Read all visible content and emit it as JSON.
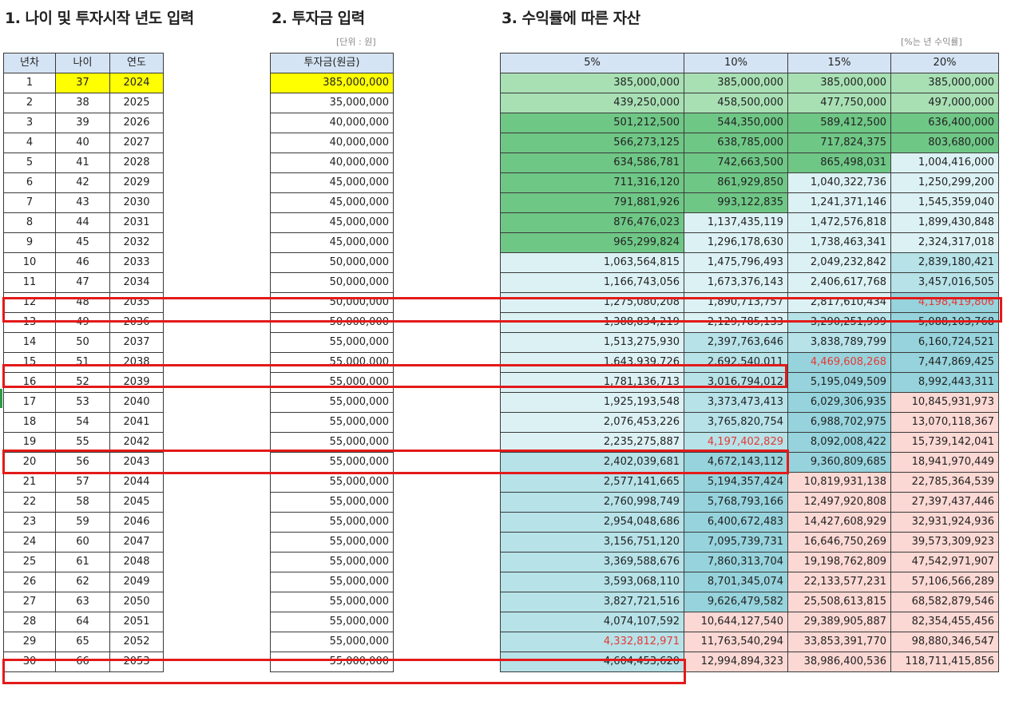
{
  "sections": {
    "s1_title": "1. 나이 및 투자시작 년도 입력",
    "s2_title": "2. 투자금 입력",
    "s3_title": "3. 수익률에 따른 자산",
    "s2_unit": "[단위 : 원]",
    "s3_unit": "[%는 년 수익률]"
  },
  "table1": {
    "headers": [
      "년차",
      "나이",
      "연도"
    ],
    "rows": [
      [
        1,
        37,
        2024
      ],
      [
        2,
        38,
        2025
      ],
      [
        3,
        39,
        2026
      ],
      [
        4,
        40,
        2027
      ],
      [
        5,
        41,
        2028
      ],
      [
        6,
        42,
        2029
      ],
      [
        7,
        43,
        2030
      ],
      [
        8,
        44,
        2031
      ],
      [
        9,
        45,
        2032
      ],
      [
        10,
        46,
        2033
      ],
      [
        11,
        47,
        2034
      ],
      [
        12,
        48,
        2035
      ],
      [
        13,
        49,
        2036
      ],
      [
        14,
        50,
        2037
      ],
      [
        15,
        51,
        2038
      ],
      [
        16,
        52,
        2039
      ],
      [
        17,
        53,
        2040
      ],
      [
        18,
        54,
        2041
      ],
      [
        19,
        55,
        2042
      ],
      [
        20,
        56,
        2043
      ],
      [
        21,
        57,
        2044
      ],
      [
        22,
        58,
        2045
      ],
      [
        23,
        59,
        2046
      ],
      [
        24,
        60,
        2047
      ],
      [
        25,
        61,
        2048
      ],
      [
        26,
        62,
        2049
      ],
      [
        27,
        63,
        2050
      ],
      [
        28,
        64,
        2051
      ],
      [
        29,
        65,
        2052
      ],
      [
        30,
        66,
        2053
      ]
    ]
  },
  "table2": {
    "header": "투자금(원금)",
    "rows": [
      "385,000,000",
      "35,000,000",
      "40,000,000",
      "40,000,000",
      "40,000,000",
      "45,000,000",
      "45,000,000",
      "45,000,000",
      "45,000,000",
      "50,000,000",
      "50,000,000",
      "50,000,000",
      "50,000,000",
      "55,000,000",
      "55,000,000",
      "55,000,000",
      "55,000,000",
      "55,000,000",
      "55,000,000",
      "55,000,000",
      "55,000,000",
      "55,000,000",
      "55,000,000",
      "55,000,000",
      "55,000,000",
      "55,000,000",
      "55,000,000",
      "55,000,000",
      "55,000,000",
      "55,000,000"
    ]
  },
  "table3": {
    "headers": [
      "5%",
      "10%",
      "15%",
      "20%"
    ],
    "rows": [
      [
        "385,000,000",
        "385,000,000",
        "385,000,000",
        "385,000,000"
      ],
      [
        "439,250,000",
        "458,500,000",
        "477,750,000",
        "497,000,000"
      ],
      [
        "501,212,500",
        "544,350,000",
        "589,412,500",
        "636,400,000"
      ],
      [
        "566,273,125",
        "638,785,000",
        "717,824,375",
        "803,680,000"
      ],
      [
        "634,586,781",
        "742,663,500",
        "865,498,031",
        "1,004,416,000"
      ],
      [
        "711,316,120",
        "861,929,850",
        "1,040,322,736",
        "1,250,299,200"
      ],
      [
        "791,881,926",
        "993,122,835",
        "1,241,371,146",
        "1,545,359,040"
      ],
      [
        "876,476,023",
        "1,137,435,119",
        "1,472,576,818",
        "1,899,430,848"
      ],
      [
        "965,299,824",
        "1,296,178,630",
        "1,738,463,341",
        "2,324,317,018"
      ],
      [
        "1,063,564,815",
        "1,475,796,493",
        "2,049,232,842",
        "2,839,180,421"
      ],
      [
        "1,166,743,056",
        "1,673,376,143",
        "2,406,617,768",
        "3,457,016,505"
      ],
      [
        "1,275,080,208",
        "1,890,713,757",
        "2,817,610,434",
        "4,198,419,806"
      ],
      [
        "1,388,834,219",
        "2,129,785,133",
        "3,290,251,999",
        "5,088,103,768"
      ],
      [
        "1,513,275,930",
        "2,397,763,646",
        "3,838,789,799",
        "6,160,724,521"
      ],
      [
        "1,643,939,726",
        "2,692,540,011",
        "4,469,608,268",
        "7,447,869,425"
      ],
      [
        "1,781,136,713",
        "3,016,794,012",
        "5,195,049,509",
        "8,992,443,311"
      ],
      [
        "1,925,193,548",
        "3,373,473,413",
        "6,029,306,935",
        "10,845,931,973"
      ],
      [
        "2,076,453,226",
        "3,765,820,754",
        "6,988,702,975",
        "13,070,118,367"
      ],
      [
        "2,235,275,887",
        "4,197,402,829",
        "8,092,008,422",
        "15,739,142,041"
      ],
      [
        "2,402,039,681",
        "4,672,143,112",
        "9,360,809,685",
        "18,941,970,449"
      ],
      [
        "2,577,141,665",
        "5,194,357,424",
        "10,819,931,138",
        "22,785,364,539"
      ],
      [
        "2,760,998,749",
        "5,768,793,166",
        "12,497,920,808",
        "27,397,437,446"
      ],
      [
        "2,954,048,686",
        "6,400,672,483",
        "14,427,608,929",
        "32,931,924,936"
      ],
      [
        "3,156,751,120",
        "7,095,739,731",
        "16,646,750,269",
        "39,573,309,923"
      ],
      [
        "3,369,588,676",
        "7,860,313,704",
        "19,198,762,809",
        "47,542,971,907"
      ],
      [
        "3,593,068,110",
        "8,701,345,074",
        "22,133,577,231",
        "57,106,566,289"
      ],
      [
        "3,827,721,516",
        "9,626,479,582",
        "25,508,613,815",
        "68,582,879,546"
      ],
      [
        "4,074,107,592",
        "10,644,127,540",
        "29,389,905,887",
        "82,354,455,456"
      ],
      [
        "4,332,812,971",
        "11,763,540,294",
        "33,853,391,770",
        "98,880,346,547"
      ],
      [
        "4,604,453,620",
        "12,994,894,323",
        "38,986,400,536",
        "118,711,415,856"
      ]
    ]
  },
  "colors": {
    "header_bg": "#d5e4f4",
    "input_yellow": "#ffff00",
    "band_light_green": "#a8e0b4",
    "band_mid_green": "#86d09a",
    "band_green": "#6fc786",
    "band_pale_blue": "#dcf1f4",
    "band_light_teal": "#b6e2e8",
    "band_teal": "#96d3dc",
    "band_pink": "#fbd8d4",
    "highlight_red": "#e31a1a",
    "text_red": "#e53935"
  }
}
